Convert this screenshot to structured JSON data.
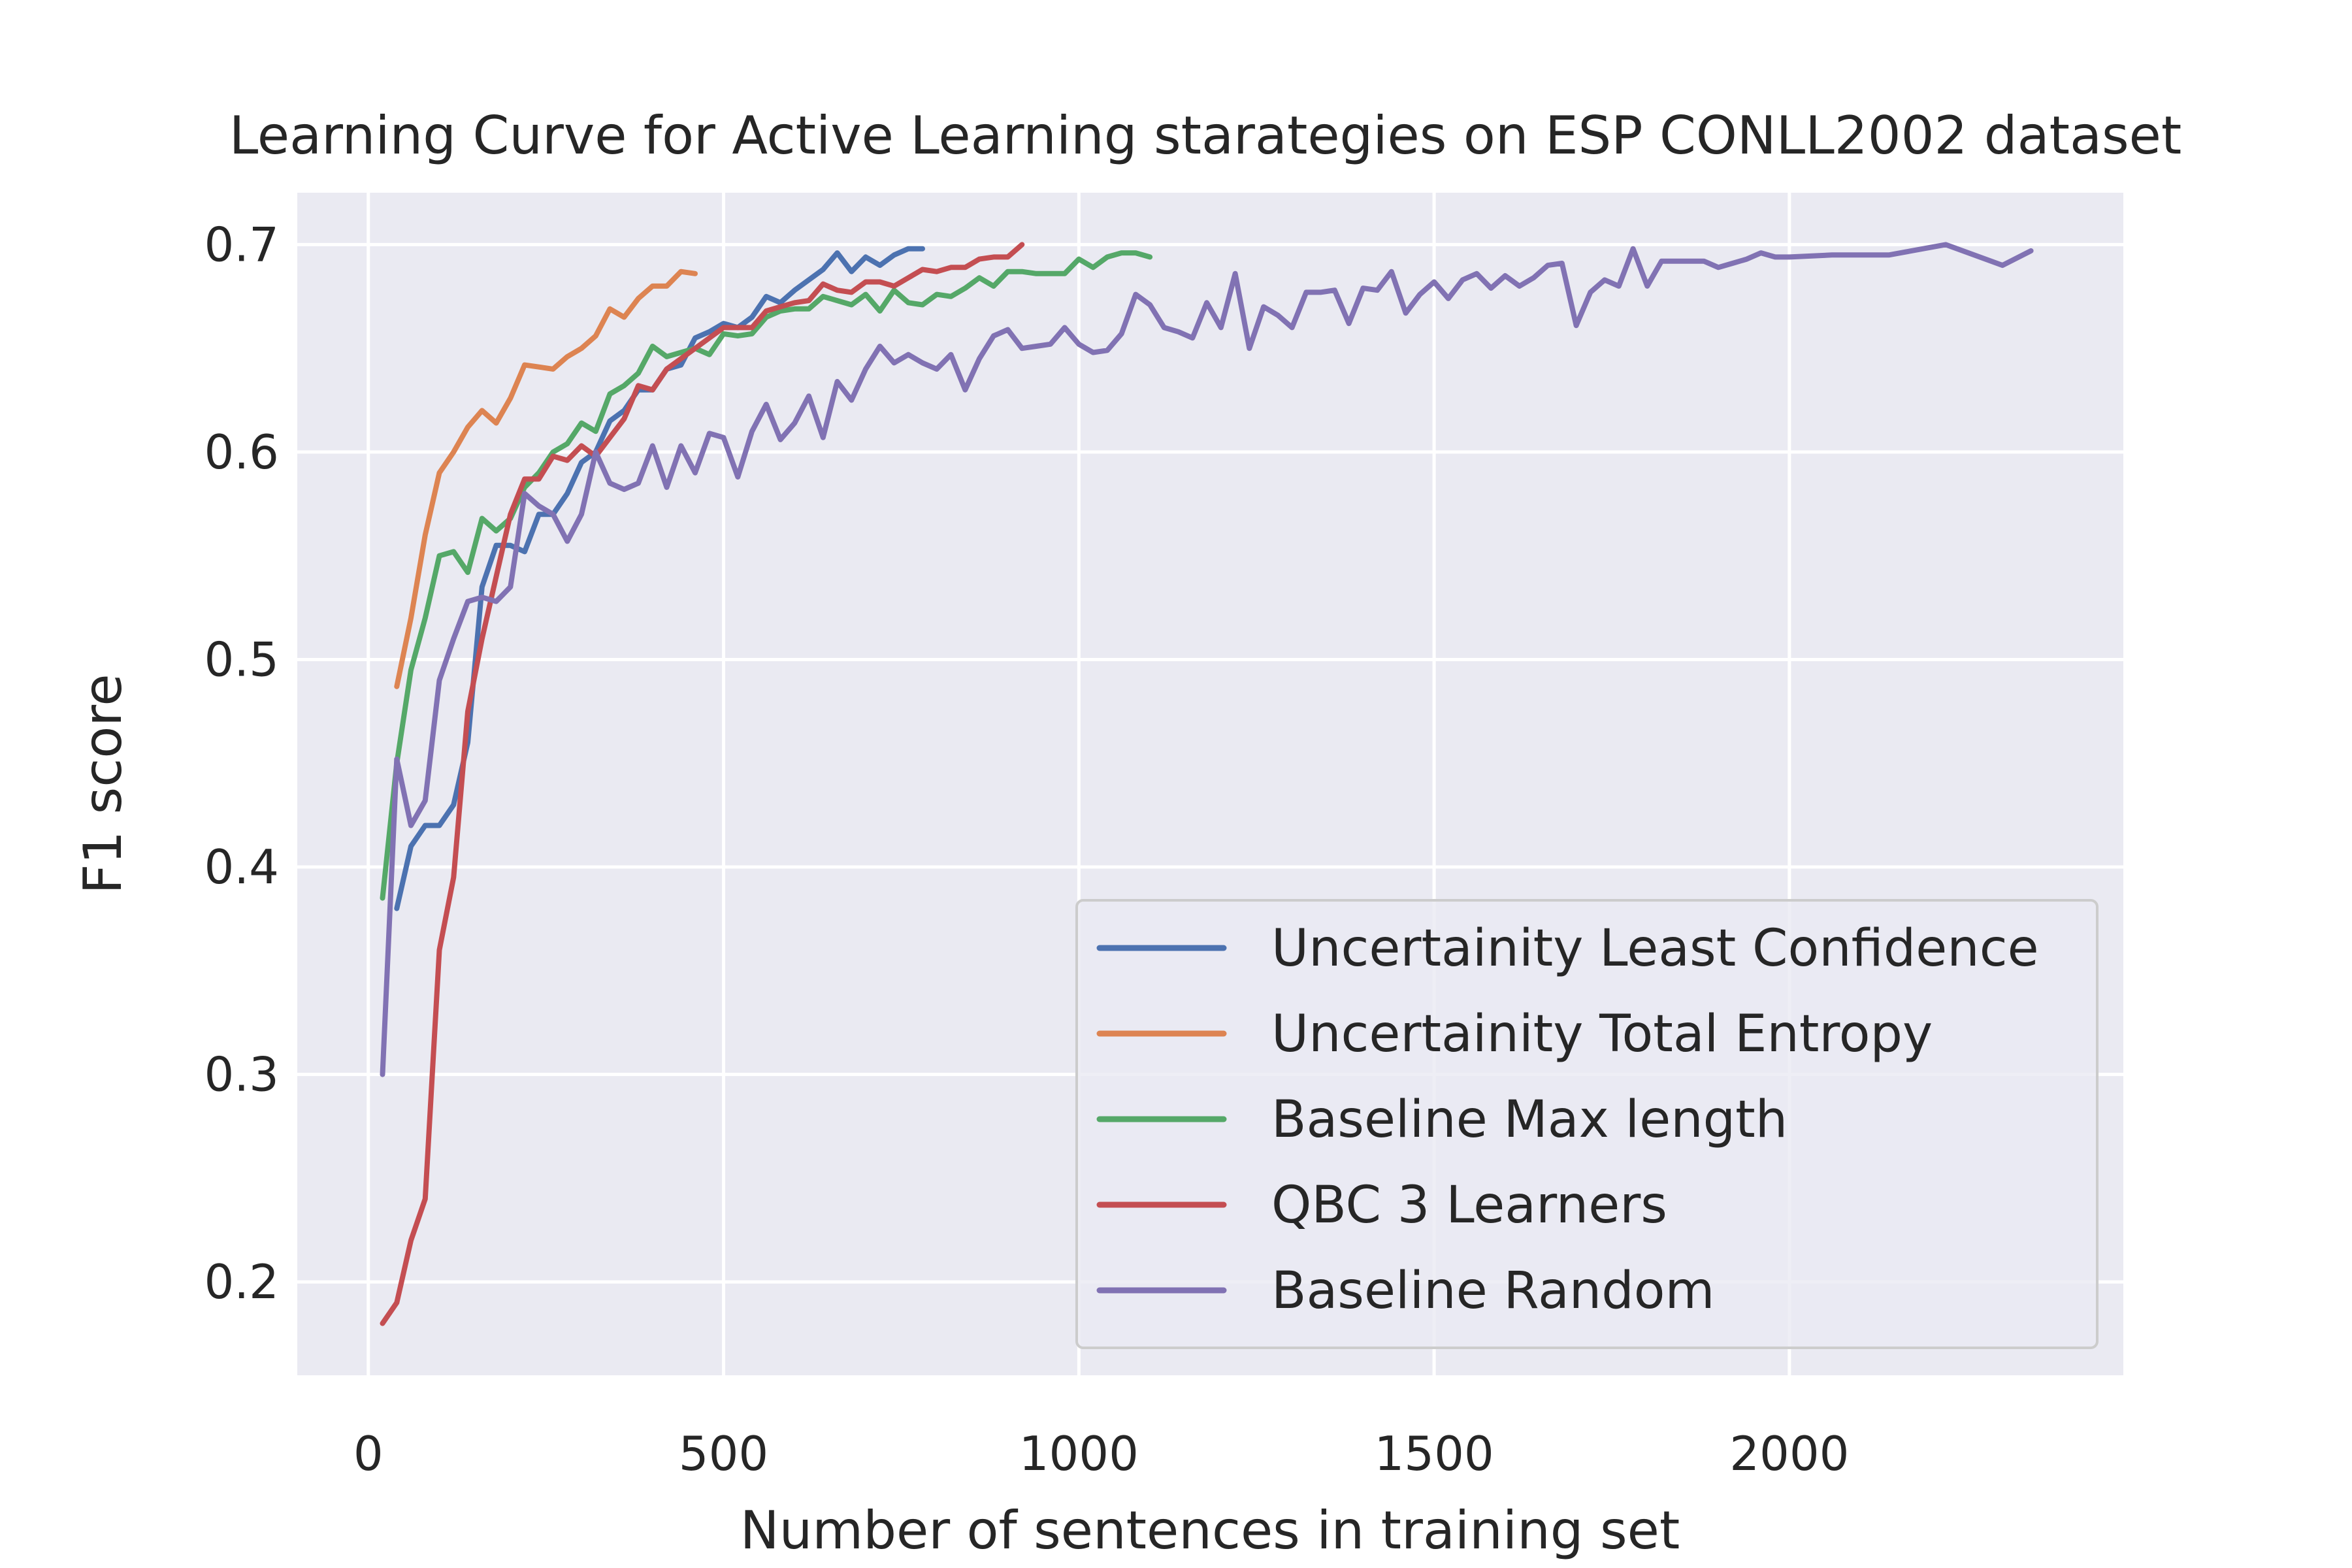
{
  "chart_data": {
    "type": "line",
    "title": "Learning Curve for Active Learning starategies on ESP CONLL2002 dataset",
    "xlabel": "Number of sentences in training set",
    "ylabel": "F1 score",
    "xlim": [
      -100,
      2470
    ],
    "ylim": [
      0.155,
      0.725
    ],
    "xticks": [
      0,
      500,
      1000,
      1500,
      2000
    ],
    "yticks": [
      0.2,
      0.3,
      0.4,
      0.5,
      0.6,
      0.7
    ],
    "xtick_labels": [
      "0",
      "500",
      "1000",
      "1500",
      "2000"
    ],
    "ytick_labels": [
      "0.2",
      "0.3",
      "0.4",
      "0.5",
      "0.6",
      "0.7"
    ],
    "grid": true,
    "legend_position": "bottom-right",
    "background": "#eaeaf2",
    "series": [
      {
        "name": "Uncertainity Least Confidence",
        "color": "#4c72b0",
        "x": [
          40,
          60,
          80,
          100,
          120,
          140,
          160,
          180,
          200,
          220,
          240,
          260,
          280,
          300,
          320,
          340,
          360,
          380,
          400,
          420,
          440,
          460,
          480,
          500,
          520,
          540,
          560,
          580,
          600,
          620,
          640,
          660,
          680,
          700,
          720,
          740,
          760,
          780
        ],
        "y": [
          0.38,
          0.41,
          0.42,
          0.42,
          0.43,
          0.46,
          0.535,
          0.555,
          0.555,
          0.552,
          0.57,
          0.57,
          0.58,
          0.595,
          0.6,
          0.615,
          0.62,
          0.63,
          0.63,
          0.64,
          0.642,
          0.655,
          0.658,
          0.662,
          0.66,
          0.665,
          0.675,
          0.672,
          0.678,
          0.683,
          0.688,
          0.696,
          0.687,
          0.694,
          0.69,
          0.695,
          0.698,
          0.698
        ]
      },
      {
        "name": "Uncertainity Total Entropy",
        "color": "#dd8452",
        "x": [
          40,
          60,
          80,
          100,
          120,
          140,
          160,
          180,
          200,
          220,
          240,
          260,
          280,
          300,
          320,
          340,
          360,
          380,
          400,
          420,
          440,
          460
        ],
        "y": [
          0.487,
          0.52,
          0.56,
          0.59,
          0.6,
          0.612,
          0.62,
          0.614,
          0.626,
          0.642,
          0.641,
          0.64,
          0.646,
          0.65,
          0.656,
          0.669,
          0.665,
          0.674,
          0.68,
          0.68,
          0.687,
          0.686
        ]
      },
      {
        "name": "Baseline Max length",
        "color": "#55a868",
        "x": [
          20,
          40,
          60,
          80,
          100,
          120,
          140,
          160,
          180,
          200,
          220,
          240,
          260,
          280,
          300,
          320,
          340,
          360,
          380,
          400,
          420,
          440,
          460,
          480,
          500,
          520,
          540,
          560,
          580,
          600,
          620,
          640,
          660,
          680,
          700,
          720,
          740,
          760,
          780,
          800,
          820,
          840,
          860,
          880,
          900,
          920,
          940,
          960,
          980,
          1000,
          1020,
          1040,
          1060,
          1080,
          1100
        ],
        "y": [
          0.385,
          0.45,
          0.495,
          0.52,
          0.55,
          0.552,
          0.542,
          0.568,
          0.562,
          0.568,
          0.583,
          0.59,
          0.6,
          0.604,
          0.614,
          0.61,
          0.628,
          0.632,
          0.638,
          0.651,
          0.646,
          0.648,
          0.65,
          0.647,
          0.657,
          0.656,
          0.657,
          0.665,
          0.668,
          0.669,
          0.669,
          0.675,
          0.673,
          0.671,
          0.676,
          0.668,
          0.678,
          0.672,
          0.671,
          0.676,
          0.675,
          0.679,
          0.684,
          0.68,
          0.687,
          0.687,
          0.686,
          0.686,
          0.686,
          0.693,
          0.689,
          0.694,
          0.696,
          0.696,
          0.694
        ]
      },
      {
        "name": "QBC 3 Learners",
        "color": "#c44e52",
        "x": [
          20,
          40,
          60,
          80,
          100,
          120,
          140,
          160,
          180,
          200,
          220,
          240,
          260,
          280,
          300,
          320,
          340,
          360,
          380,
          400,
          420,
          440,
          460,
          480,
          500,
          520,
          540,
          560,
          580,
          600,
          620,
          640,
          660,
          680,
          700,
          720,
          740,
          760,
          780,
          800,
          820,
          840,
          860,
          880,
          900,
          920
        ],
        "y": [
          0.18,
          0.19,
          0.22,
          0.24,
          0.36,
          0.395,
          0.475,
          0.51,
          0.54,
          0.57,
          0.587,
          0.587,
          0.598,
          0.596,
          0.603,
          0.598,
          0.607,
          0.616,
          0.632,
          0.63,
          0.64,
          0.645,
          0.65,
          0.655,
          0.66,
          0.66,
          0.66,
          0.668,
          0.67,
          0.672,
          0.673,
          0.681,
          0.678,
          0.677,
          0.682,
          0.682,
          0.68,
          0.684,
          0.688,
          0.687,
          0.689,
          0.689,
          0.693,
          0.694,
          0.694,
          0.7
        ]
      },
      {
        "name": "Baseline Random",
        "color": "#8172b3",
        "x": [
          20,
          40,
          60,
          80,
          100,
          120,
          140,
          160,
          180,
          200,
          220,
          240,
          260,
          280,
          300,
          320,
          340,
          360,
          380,
          400,
          420,
          440,
          460,
          480,
          500,
          520,
          540,
          560,
          580,
          600,
          620,
          640,
          660,
          680,
          700,
          720,
          740,
          760,
          780,
          800,
          820,
          840,
          860,
          880,
          900,
          920,
          940,
          960,
          980,
          1000,
          1020,
          1040,
          1060,
          1080,
          1100,
          1120,
          1140,
          1160,
          1180,
          1200,
          1220,
          1240,
          1260,
          1280,
          1300,
          1320,
          1340,
          1360,
          1380,
          1400,
          1420,
          1440,
          1460,
          1480,
          1500,
          1520,
          1540,
          1560,
          1580,
          1600,
          1620,
          1640,
          1660,
          1680,
          1700,
          1720,
          1740,
          1760,
          1780,
          1800,
          1820,
          1840,
          1860,
          1880,
          1900,
          1920,
          1940,
          1960,
          1980,
          2000,
          2060,
          2140,
          2220,
          2300,
          2340
        ],
        "y": [
          0.3,
          0.452,
          0.42,
          0.432,
          0.49,
          0.51,
          0.528,
          0.53,
          0.528,
          0.535,
          0.58,
          0.574,
          0.57,
          0.557,
          0.57,
          0.6,
          0.585,
          0.582,
          0.585,
          0.603,
          0.583,
          0.603,
          0.59,
          0.609,
          0.607,
          0.588,
          0.61,
          0.623,
          0.606,
          0.614,
          0.627,
          0.607,
          0.634,
          0.625,
          0.64,
          0.651,
          0.643,
          0.647,
          0.643,
          0.64,
          0.647,
          0.63,
          0.645,
          0.656,
          0.659,
          0.65,
          0.651,
          0.652,
          0.66,
          0.652,
          0.648,
          0.649,
          0.657,
          0.676,
          0.671,
          0.66,
          0.658,
          0.655,
          0.672,
          0.66,
          0.686,
          0.65,
          0.67,
          0.666,
          0.66,
          0.677,
          0.677,
          0.678,
          0.662,
          0.679,
          0.678,
          0.687,
          0.667,
          0.676,
          0.682,
          0.674,
          0.683,
          0.686,
          0.679,
          0.685,
          0.68,
          0.684,
          0.69,
          0.691,
          0.661,
          0.677,
          0.683,
          0.68,
          0.698,
          0.68,
          0.692,
          0.692,
          0.692,
          0.692,
          0.689,
          0.691,
          0.693,
          0.696,
          0.694,
          0.694,
          0.695,
          0.695,
          0.7,
          0.69,
          0.697
        ]
      }
    ]
  }
}
